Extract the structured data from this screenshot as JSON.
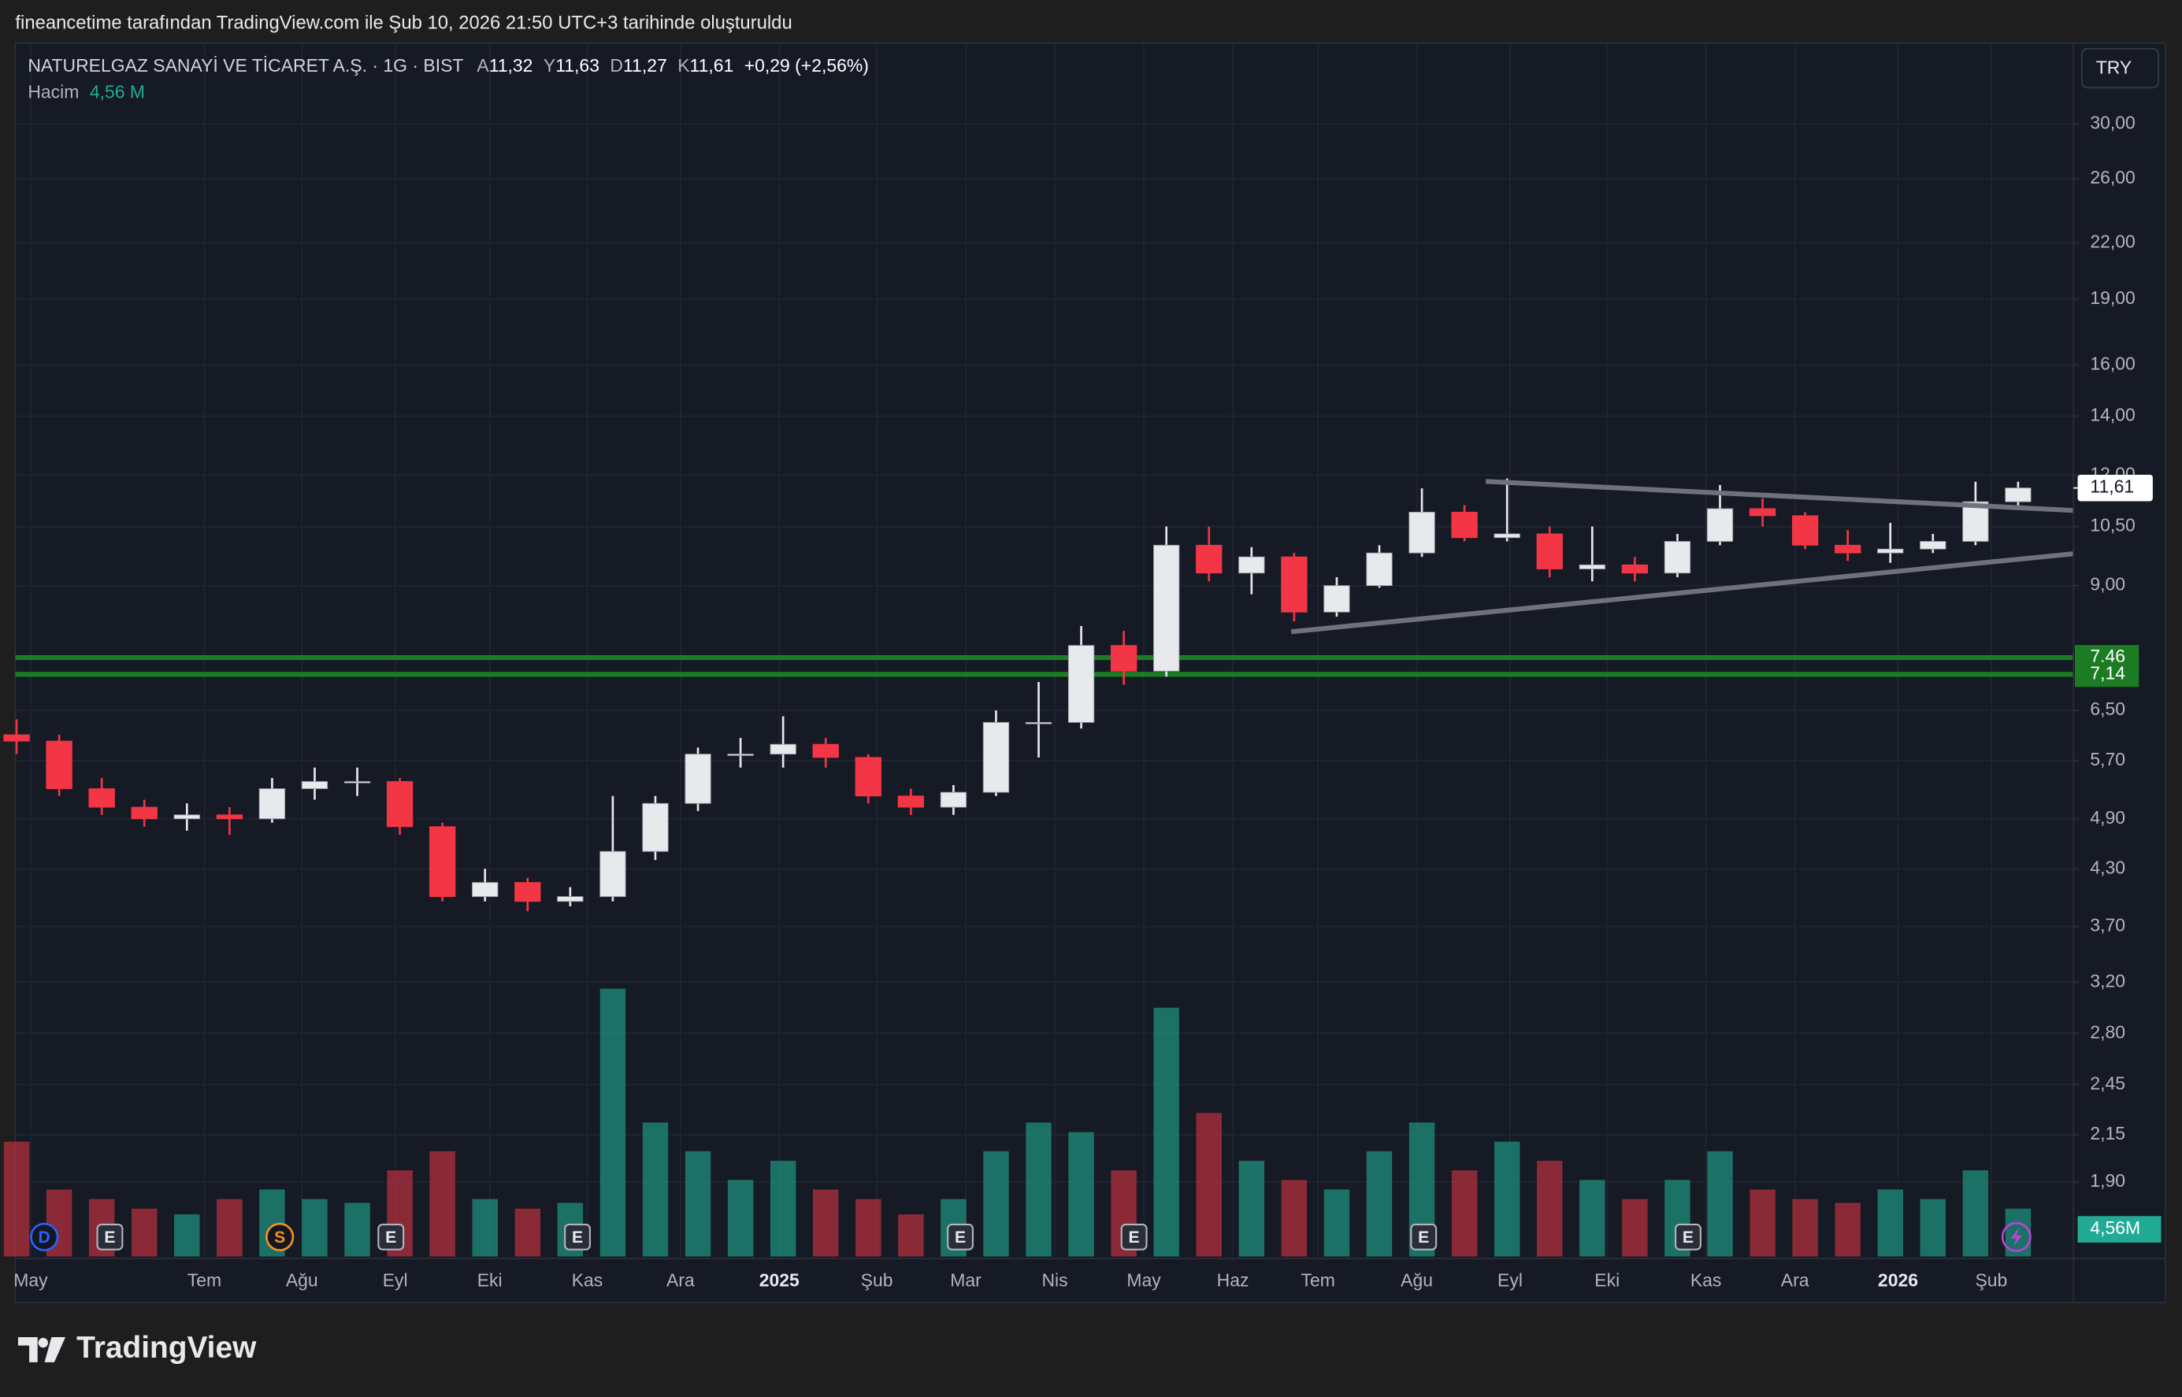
{
  "header": "fineancetime tarafından TradingView.com ile Şub 10, 2026 21:50 UTC+3 tarihinde oluşturuldu",
  "chart_data": {
    "type": "candlestick",
    "legend": {
      "symbol": "NATURELGAZ SANAYİ VE TİCARET A.Ş. · 1G · BIST",
      "ohlc": [
        {
          "key": "A",
          "value": "11,32"
        },
        {
          "key": "Y",
          "value": "11,63"
        },
        {
          "key": "D",
          "value": "11,27"
        },
        {
          "key": "K",
          "value": "11,61"
        }
      ],
      "change": "+0,29 (+2,56%)",
      "volume_label": "Hacim",
      "volume_value": "4,56 M"
    },
    "currency": "TRY",
    "open": [
      6.1,
      6.0,
      5.3,
      5.05,
      4.9,
      4.95,
      4.9,
      5.3,
      5.4,
      5.4,
      4.8,
      4.0,
      4.15,
      3.95,
      4.0,
      4.5,
      5.1,
      5.8,
      5.8,
      5.95,
      5.75,
      5.2,
      5.05,
      5.25,
      6.3,
      6.3,
      7.7,
      7.2,
      10.0,
      9.3,
      9.7,
      8.4,
      9.0,
      9.8,
      10.9,
      10.2,
      10.3,
      9.4,
      9.5,
      9.3,
      10.1,
      11.0,
      10.8,
      10.0,
      9.8,
      9.9,
      10.1,
      11.2
    ],
    "high": [
      6.35,
      6.1,
      5.45,
      5.15,
      5.1,
      5.05,
      5.45,
      5.6,
      5.6,
      5.45,
      4.85,
      4.3,
      4.2,
      4.1,
      5.2,
      5.2,
      5.9,
      6.05,
      6.4,
      6.05,
      5.8,
      5.3,
      5.35,
      6.5,
      7.0,
      8.1,
      8.0,
      10.5,
      10.5,
      9.95,
      9.8,
      9.2,
      10.0,
      11.6,
      11.1,
      11.9,
      10.5,
      10.5,
      9.7,
      10.3,
      11.7,
      11.3,
      10.9,
      10.4,
      10.6,
      10.3,
      11.8,
      11.8
    ],
    "low": [
      5.8,
      5.2,
      4.95,
      4.8,
      4.75,
      4.7,
      4.85,
      5.15,
      5.2,
      4.7,
      3.95,
      3.95,
      3.85,
      3.9,
      3.95,
      4.4,
      5.0,
      5.6,
      5.6,
      5.6,
      5.1,
      4.95,
      4.95,
      5.2,
      5.75,
      6.2,
      6.95,
      7.1,
      9.1,
      8.8,
      8.2,
      8.3,
      8.95,
      9.7,
      10.1,
      10.1,
      9.2,
      9.1,
      9.1,
      9.2,
      10.0,
      10.5,
      9.9,
      9.6,
      9.55,
      9.8,
      10.0,
      11.0
    ],
    "close": [
      6.0,
      5.3,
      5.05,
      4.9,
      4.95,
      4.9,
      5.3,
      5.4,
      5.4,
      4.8,
      4.0,
      4.15,
      3.95,
      4.0,
      4.5,
      5.1,
      5.8,
      5.8,
      5.95,
      5.75,
      5.2,
      5.05,
      5.25,
      6.3,
      6.3,
      7.7,
      7.2,
      10.0,
      9.3,
      9.7,
      8.4,
      9.0,
      9.8,
      10.9,
      10.2,
      10.3,
      9.4,
      9.5,
      9.3,
      10.1,
      11.0,
      10.8,
      10.0,
      9.8,
      9.9,
      10.1,
      11.2,
      11.61
    ],
    "volume": [
      60,
      35,
      30,
      25,
      22,
      30,
      35,
      30,
      28,
      45,
      55,
      30,
      25,
      28,
      140,
      70,
      55,
      40,
      50,
      35,
      30,
      22,
      30,
      55,
      70,
      65,
      45,
      130,
      75,
      50,
      40,
      35,
      55,
      70,
      45,
      60,
      50,
      40,
      30,
      40,
      55,
      35,
      30,
      28,
      35,
      30,
      45,
      25
    ],
    "up_color": "#e8e9ec",
    "down_color": "#f23645",
    "volume_up_color": "#1f8f7e",
    "volume_down_color": "#b3303d",
    "log_scale": true,
    "ylim": [
      1.565,
      36.9
    ],
    "yticks": [
      {
        "value": 30,
        "label": "30,00"
      },
      {
        "value": 26,
        "label": "26,00"
      },
      {
        "value": 22,
        "label": "22,00"
      },
      {
        "value": 19,
        "label": "19,00"
      },
      {
        "value": 16,
        "label": "16,00"
      },
      {
        "value": 14,
        "label": "14,00"
      },
      {
        "value": 12,
        "label": "12,00"
      },
      {
        "value": 10.5,
        "label": "10,50"
      },
      {
        "value": 9,
        "label": "9,00"
      },
      {
        "value": 6.5,
        "label": "6,50"
      },
      {
        "value": 5.7,
        "label": "5,70"
      },
      {
        "value": 4.9,
        "label": "4,90"
      },
      {
        "value": 4.3,
        "label": "4,30"
      },
      {
        "value": 3.7,
        "label": "3,70"
      },
      {
        "value": 3.2,
        "label": "3,20"
      },
      {
        "value": 2.8,
        "label": "2,80"
      },
      {
        "value": 2.45,
        "label": "2,45"
      },
      {
        "value": 2.15,
        "label": "2,15"
      },
      {
        "value": 1.9,
        "label": "1,90"
      }
    ],
    "xlim": [
      -0.03,
      48.3
    ],
    "xticks": [
      {
        "value": 0.33,
        "label": "May"
      },
      {
        "value": 4.41,
        "label": "Tem"
      },
      {
        "value": 6.7,
        "label": "Ağu"
      },
      {
        "value": 8.89,
        "label": "Eyl"
      },
      {
        "value": 11.11,
        "label": "Eki"
      },
      {
        "value": 13.4,
        "label": "Kas"
      },
      {
        "value": 15.59,
        "label": "Ara"
      },
      {
        "value": 17.91,
        "label": "2025"
      },
      {
        "value": 20.2,
        "label": "Şub"
      },
      {
        "value": 22.29,
        "label": "Mar"
      },
      {
        "value": 24.38,
        "label": "Nis"
      },
      {
        "value": 26.47,
        "label": "May"
      },
      {
        "value": 28.56,
        "label": "Haz"
      },
      {
        "value": 30.56,
        "label": "Tem"
      },
      {
        "value": 32.88,
        "label": "Ağu"
      },
      {
        "value": 35.07,
        "label": "Eyl"
      },
      {
        "value": 37.35,
        "label": "Eki"
      },
      {
        "value": 39.67,
        "label": "Kas"
      },
      {
        "value": 41.76,
        "label": "Ara"
      },
      {
        "value": 44.18,
        "label": "2026"
      },
      {
        "value": 46.37,
        "label": "Şub"
      }
    ],
    "volume_ylim": [
      0,
      160
    ],
    "volume_badge": "4,56M",
    "last_price": {
      "value": 11.61,
      "label": "11,61"
    },
    "levels": [
      {
        "value": 7.46,
        "label": "7,46",
        "color": "#1c7c24"
      },
      {
        "value": 7.14,
        "label": "7,14",
        "color": "#1c7c24"
      }
    ],
    "trendlines": [
      {
        "x": [
          34.5,
          48.3
        ],
        "y": [
          11.81,
          10.95
        ],
        "color": "#6f727c"
      },
      {
        "x": [
          29.93,
          48.3
        ],
        "y": [
          7.98,
          9.78
        ],
        "color": "#6f727c"
      }
    ],
    "events": [
      {
        "label": "D",
        "x": 0.65,
        "color": "#2962ff",
        "shape": "circle"
      },
      {
        "label": "E",
        "x": 2.19,
        "color": "#b2b5be",
        "shape": "square"
      },
      {
        "label": "S",
        "x": 6.18,
        "color": "#f7931a",
        "shape": "circle"
      },
      {
        "label": "E",
        "x": 8.79,
        "color": "#b2b5be",
        "shape": "square"
      },
      {
        "label": "E",
        "x": 13.17,
        "color": "#b2b5be",
        "shape": "square"
      },
      {
        "label": "E",
        "x": 22.16,
        "color": "#b2b5be",
        "shape": "square"
      },
      {
        "label": "E",
        "x": 26.24,
        "color": "#b2b5be",
        "shape": "square"
      },
      {
        "label": "E",
        "x": 33.04,
        "color": "#b2b5be",
        "shape": "square"
      },
      {
        "label": "E",
        "x": 39.25,
        "color": "#b2b5be",
        "shape": "square"
      }
    ],
    "grid": true
  },
  "footer": "TradingView"
}
